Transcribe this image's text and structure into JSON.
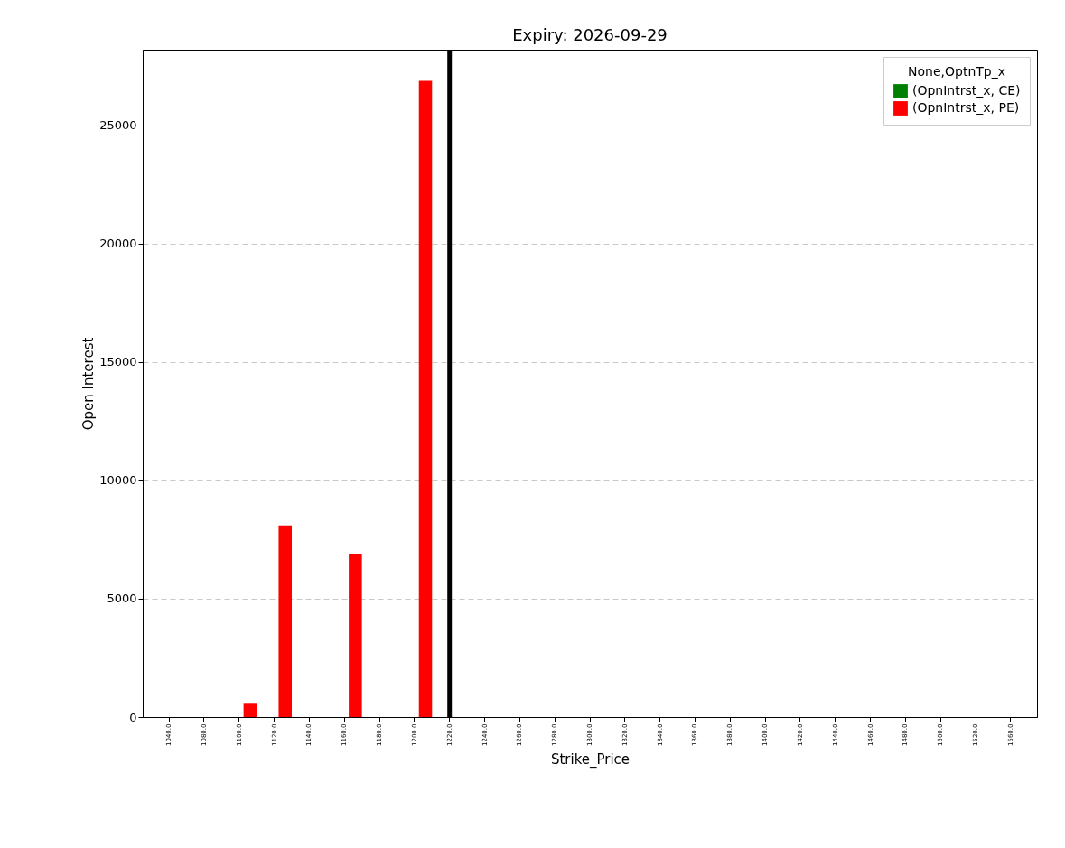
{
  "chart_data": {
    "type": "bar",
    "title": "Expiry: 2026-09-29",
    "xlabel": "Strike_Price",
    "ylabel": "Open Interest",
    "legend_title": "None,OptnTp_x",
    "categories": [
      "1040.0",
      "1080.0",
      "1100.0",
      "1120.0",
      "1140.0",
      "1160.0",
      "1180.0",
      "1200.0",
      "1220.0",
      "1240.0",
      "1260.0",
      "1280.0",
      "1300.0",
      "1320.0",
      "1340.0",
      "1360.0",
      "1380.0",
      "1400.0",
      "1420.0",
      "1440.0",
      "1460.0",
      "1480.0",
      "1500.0",
      "1520.0",
      "1560.0"
    ],
    "series": [
      {
        "name": "(OpnIntrst_x, CE)",
        "color": "#008000",
        "values": [
          0,
          0,
          0,
          0,
          0,
          0,
          0,
          0,
          0,
          0,
          0,
          0,
          0,
          0,
          0,
          0,
          0,
          0,
          0,
          0,
          0,
          0,
          0,
          0,
          0
        ]
      },
      {
        "name": "(OpnIntrst_x, PE)",
        "color": "#ff0000",
        "values": [
          0,
          0,
          600,
          8100,
          0,
          6870,
          0,
          26880,
          0,
          0,
          0,
          0,
          0,
          0,
          0,
          0,
          0,
          0,
          0,
          0,
          0,
          0,
          0,
          0,
          0
        ]
      }
    ],
    "ylim": [
      0,
      28200
    ],
    "yticks": [
      0,
      5000,
      10000,
      15000,
      20000,
      25000
    ],
    "grid": "y",
    "legend": "top right",
    "ref_lines": [
      {
        "axis": "x",
        "value": "1220.0",
        "color": "#000000"
      }
    ]
  }
}
